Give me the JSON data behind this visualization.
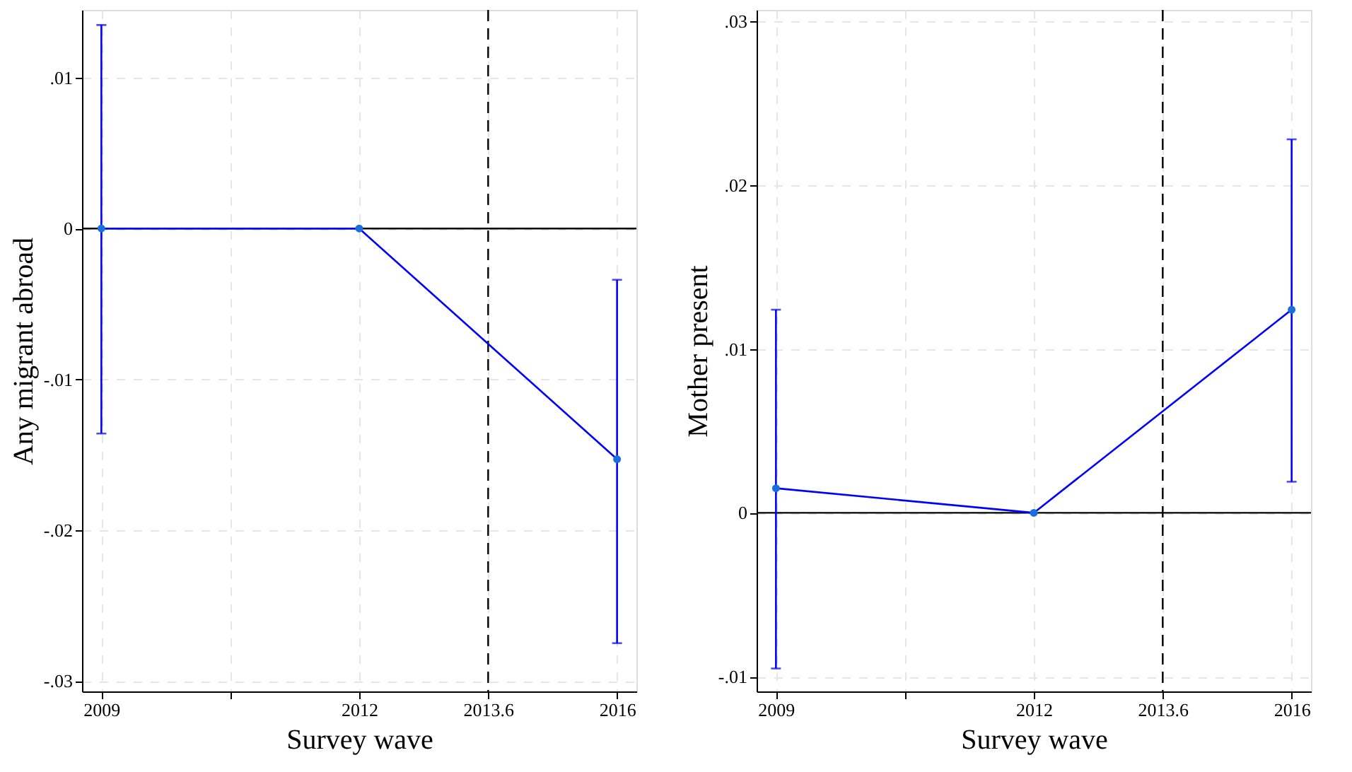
{
  "chart_data": [
    {
      "type": "line",
      "xlabel": "Survey wave",
      "ylabel": "Any migrant abroad",
      "categories": [
        "2009",
        null,
        "2012",
        "2013.6",
        "2016"
      ],
      "ylim": [
        -0.0307,
        0.0145
      ],
      "yticks": [
        {
          "value": -0.03,
          "label": "-.03"
        },
        {
          "value": -0.02,
          "label": "-.02"
        },
        {
          "value": -0.01,
          "label": "-.01"
        },
        0,
        {
          "value": 0.01,
          "label": ".01"
        }
      ],
      "grid": true,
      "marker": "circle",
      "line_style": "solid",
      "series": [
        {
          "color": "#0000ff",
          "values": [
            0,
            null,
            0,
            null,
            -0.0153
          ],
          "errors": [
            [
              -0.0136,
              0.0135
            ],
            null,
            null,
            null,
            [
              -0.0275,
              -0.0034
            ]
          ]
        }
      ],
      "ref_lines": [
        {
          "axis": "y",
          "value": 0,
          "color": "#000000",
          "line_style": "solid"
        },
        {
          "axis": "x",
          "value": "2013.6",
          "color": "#000000",
          "line_style": "dashed"
        }
      ]
    },
    {
      "type": "line",
      "xlabel": "Survey wave",
      "ylabel": "Mother present",
      "categories": [
        "2009",
        null,
        "2012",
        "2013.6",
        "2016"
      ],
      "ylim": [
        -0.0109,
        0.0307
      ],
      "yticks": [
        {
          "value": -0.01,
          "label": "-.01"
        },
        0,
        {
          "value": 0.01,
          "label": ".01"
        },
        {
          "value": 0.02,
          "label": ".02"
        },
        {
          "value": 0.03,
          "label": ".03"
        }
      ],
      "grid": true,
      "marker": "circle",
      "line_style": "solid",
      "series": [
        {
          "color": "#0000ff",
          "values": [
            0.0015,
            null,
            0,
            null,
            0.0124
          ],
          "errors": [
            [
              -0.0095,
              0.0124
            ],
            null,
            null,
            null,
            [
              0.0019,
              0.0228
            ]
          ]
        }
      ],
      "ref_lines": [
        {
          "axis": "y",
          "value": 0,
          "color": "#000000",
          "line_style": "solid"
        },
        {
          "axis": "x",
          "value": "2013.6",
          "color": "#000000",
          "line_style": "dashed"
        }
      ]
    }
  ]
}
